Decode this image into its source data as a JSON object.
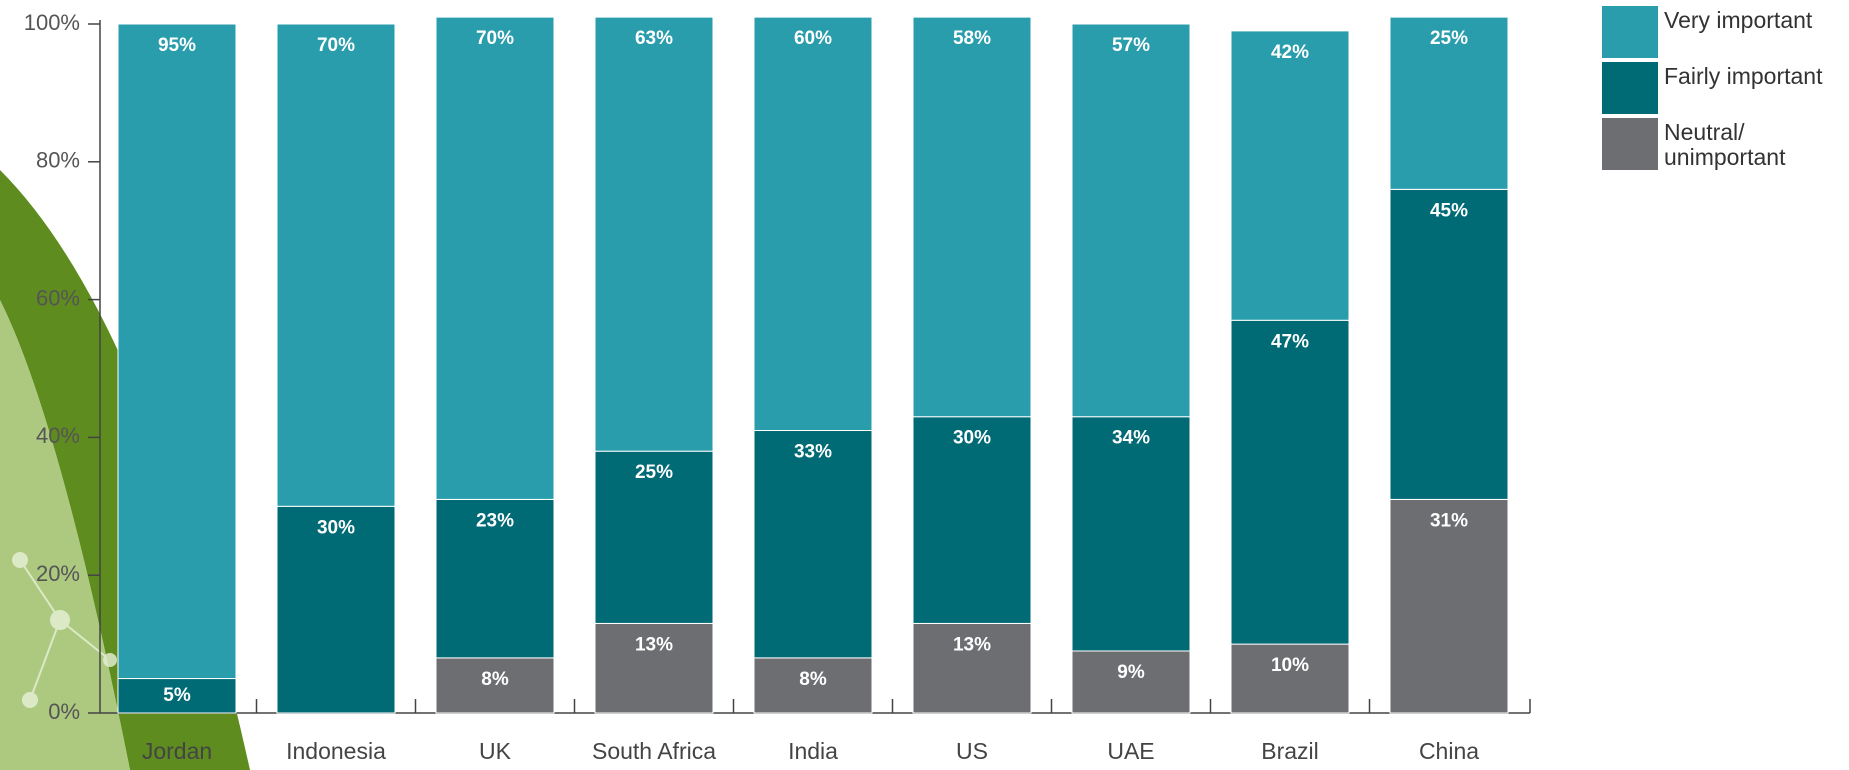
{
  "chart_data": {
    "type": "stacked-bar",
    "categories": [
      "Jordan",
      "Indonesia",
      "UK",
      "South Africa",
      "India",
      "US",
      "UAE",
      "Brazil",
      "China"
    ],
    "series": [
      {
        "name": "Neutral/ unimportant",
        "color": "#6d6e71",
        "values": [
          null,
          null,
          8,
          13,
          8,
          13,
          9,
          10,
          31
        ],
        "value_labels": [
          null,
          null,
          "8%",
          "13%",
          "8%",
          "13%",
          "9%",
          "10%",
          "31%"
        ]
      },
      {
        "name": "Fairly important",
        "color": "#006a75",
        "values": [
          5,
          30,
          23,
          25,
          33,
          30,
          34,
          47,
          45
        ],
        "value_labels": [
          "5%",
          "30%",
          "23%",
          "25%",
          "33%",
          "30%",
          "34%",
          "47%",
          "45%"
        ]
      },
      {
        "name": "Very important",
        "color": "#2a9dac",
        "values": [
          95,
          70,
          70,
          63,
          60,
          58,
          57,
          42,
          25
        ],
        "value_labels": [
          "95%",
          "70%",
          "70%",
          "63%",
          "60%",
          "58%",
          "57%",
          "42%",
          "25%"
        ]
      }
    ],
    "ylim": [
      0,
      100
    ],
    "yticks": [
      {
        "value": 0,
        "label": "0%"
      },
      {
        "value": 20,
        "label": "20%"
      },
      {
        "value": 40,
        "label": "40%"
      },
      {
        "value": 60,
        "label": "60%"
      },
      {
        "value": 80,
        "label": "80%"
      },
      {
        "value": 100,
        "label": "100%"
      }
    ]
  }
}
